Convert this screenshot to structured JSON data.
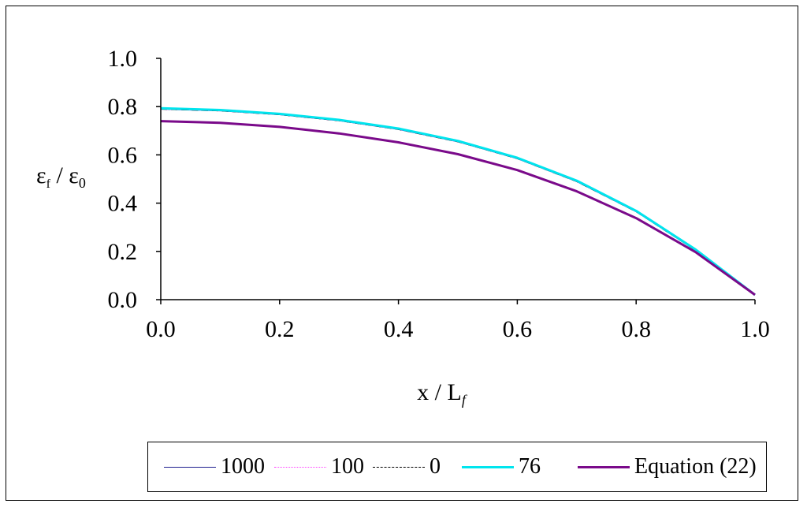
{
  "chart_data": {
    "type": "line",
    "xlabel": "x / L",
    "xlabel_sub": "f",
    "ylabel_main": "ε",
    "ylabel_sub1": "f",
    "ylabel_mid": " / ε",
    "ylabel_sub2": "0",
    "xlim": [
      0,
      1
    ],
    "ylim": [
      0,
      1
    ],
    "x_ticks": [
      "0.0",
      "0.2",
      "0.4",
      "0.6",
      "0.8",
      "1.0"
    ],
    "y_ticks": [
      "0.0",
      "0.2",
      "0.4",
      "0.6",
      "0.8",
      "1.0"
    ],
    "grid": false,
    "legend_position": "bottom",
    "x": [
      0,
      0.1,
      0.2,
      0.3,
      0.4,
      0.5,
      0.6,
      0.7,
      0.8,
      0.9,
      1.0
    ],
    "series": [
      {
        "name": "1000",
        "color": "#1f1f8f",
        "style": "solid",
        "values": [
          0.79,
          0.783,
          0.767,
          0.742,
          0.706,
          0.655,
          0.585,
          0.49,
          0.365,
          0.205,
          0.02
        ]
      },
      {
        "name": "100",
        "color": "#ff40ff",
        "style": "dotted",
        "values": [
          0.79,
          0.783,
          0.767,
          0.742,
          0.706,
          0.655,
          0.585,
          0.49,
          0.365,
          0.205,
          0.02
        ]
      },
      {
        "name": "0",
        "color": "#000000",
        "style": "dashed",
        "values": [
          0.79,
          0.783,
          0.767,
          0.742,
          0.706,
          0.655,
          0.585,
          0.49,
          0.365,
          0.205,
          0.02
        ]
      },
      {
        "name": "76",
        "color": "#00e5ee",
        "style": "solid",
        "values": [
          0.793,
          0.786,
          0.77,
          0.745,
          0.709,
          0.658,
          0.588,
          0.493,
          0.368,
          0.208,
          0.02
        ]
      },
      {
        "name": "Equation (22)",
        "color": "#7a0a8a",
        "style": "solid",
        "values": [
          0.74,
          0.733,
          0.716,
          0.689,
          0.652,
          0.603,
          0.537,
          0.449,
          0.338,
          0.197,
          0.02
        ]
      }
    ]
  }
}
